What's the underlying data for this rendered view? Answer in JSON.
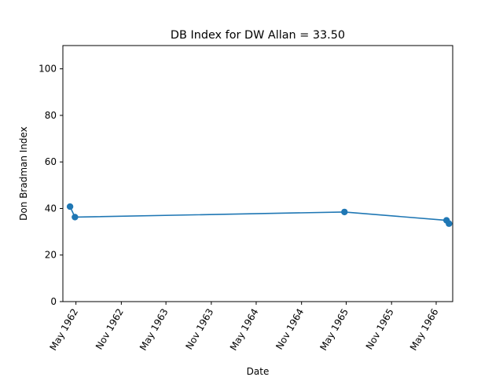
{
  "chart_data": {
    "type": "line",
    "title": "DB Index for DW Allan = 33.50",
    "xlabel": "Date",
    "ylabel": "Don Bradman Index",
    "ylim": [
      0,
      110
    ],
    "xlim": [
      "1962-03-09",
      "1966-07-07"
    ],
    "yticks": [
      0,
      20,
      40,
      60,
      80,
      100
    ],
    "xticks": [
      {
        "date": "1962-05-01",
        "label": "May 1962"
      },
      {
        "date": "1962-11-01",
        "label": "Nov 1962"
      },
      {
        "date": "1963-05-01",
        "label": "May 1963"
      },
      {
        "date": "1963-11-01",
        "label": "Nov 1963"
      },
      {
        "date": "1964-05-01",
        "label": "May 1964"
      },
      {
        "date": "1964-11-01",
        "label": "Nov 1964"
      },
      {
        "date": "1965-05-01",
        "label": "May 1965"
      },
      {
        "date": "1965-11-01",
        "label": "Nov 1965"
      },
      {
        "date": "1966-05-01",
        "label": "May 1966"
      }
    ],
    "grid": false,
    "series": [
      {
        "color": "#1f77b4",
        "x": [
          "1962-04-07",
          "1962-04-27",
          "1965-04-24",
          "1966-06-12",
          "1966-06-22"
        ],
        "y": [
          40.8,
          36.3,
          38.5,
          34.9,
          33.5
        ]
      }
    ]
  }
}
